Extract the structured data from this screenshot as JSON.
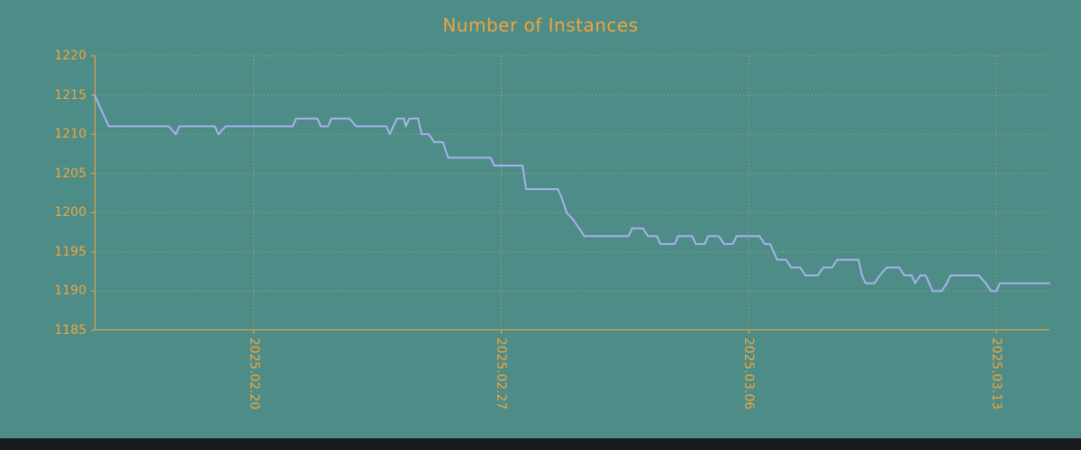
{
  "window": {
    "background": "#4e8d87",
    "bottom_bar_color": "#17191d"
  },
  "chart_data": {
    "type": "line",
    "title": "Number of Instances",
    "accent_color": "#f0a43f",
    "line_color": "#a9b1ee",
    "grid_color": "#e0c37a",
    "xlabel": "",
    "ylabel": "",
    "legend": "none",
    "grid": "dotted",
    "x_axis": {
      "unit": "date",
      "range_days": [
        -4.5,
        22.5
      ],
      "tick_positions_days": [
        0,
        7,
        14,
        21
      ],
      "tick_labels": [
        "2025.02.20",
        "2025.02.27",
        "2025.03.06",
        "2025.03.13"
      ]
    },
    "y_axis": {
      "range": [
        1185,
        1220
      ],
      "ticks": [
        1185,
        1190,
        1195,
        1200,
        1205,
        1210,
        1215,
        1220
      ]
    },
    "series": [
      {
        "name": "instances",
        "points": [
          [
            -4.5,
            1215
          ],
          [
            -4.3,
            1213
          ],
          [
            -4.1,
            1211
          ],
          [
            -2.4,
            1211
          ],
          [
            -2.2,
            1210
          ],
          [
            -2.1,
            1211
          ],
          [
            -1.1,
            1211
          ],
          [
            -1.0,
            1210
          ],
          [
            -0.8,
            1211
          ],
          [
            1.1,
            1211
          ],
          [
            1.2,
            1212
          ],
          [
            1.8,
            1212
          ],
          [
            1.9,
            1211
          ],
          [
            2.1,
            1211
          ],
          [
            2.2,
            1212
          ],
          [
            2.7,
            1212
          ],
          [
            2.9,
            1211
          ],
          [
            3.75,
            1211
          ],
          [
            3.85,
            1210
          ],
          [
            3.95,
            1211
          ],
          [
            4.05,
            1212
          ],
          [
            4.25,
            1212
          ],
          [
            4.3,
            1211
          ],
          [
            4.4,
            1212
          ],
          [
            4.65,
            1212
          ],
          [
            4.75,
            1210
          ],
          [
            4.95,
            1210
          ],
          [
            5.1,
            1209
          ],
          [
            5.35,
            1209
          ],
          [
            5.5,
            1207
          ],
          [
            6.7,
            1207
          ],
          [
            6.8,
            1206
          ],
          [
            7.6,
            1206
          ],
          [
            7.7,
            1203
          ],
          [
            8.6,
            1203
          ],
          [
            8.7,
            1202
          ],
          [
            8.85,
            1200
          ],
          [
            9.05,
            1199
          ],
          [
            9.35,
            1197
          ],
          [
            10.6,
            1197
          ],
          [
            10.7,
            1198
          ],
          [
            11.0,
            1198
          ],
          [
            11.15,
            1197
          ],
          [
            11.4,
            1197
          ],
          [
            11.5,
            1196
          ],
          [
            11.9,
            1196
          ],
          [
            12.0,
            1197
          ],
          [
            12.4,
            1197
          ],
          [
            12.5,
            1196
          ],
          [
            12.75,
            1196
          ],
          [
            12.85,
            1197
          ],
          [
            13.15,
            1197
          ],
          [
            13.3,
            1196
          ],
          [
            13.55,
            1196
          ],
          [
            13.65,
            1197
          ],
          [
            14.3,
            1197
          ],
          [
            14.45,
            1196
          ],
          [
            14.6,
            1196
          ],
          [
            14.7,
            1195
          ],
          [
            14.8,
            1194
          ],
          [
            15.05,
            1194
          ],
          [
            15.2,
            1193
          ],
          [
            15.45,
            1193
          ],
          [
            15.6,
            1192
          ],
          [
            15.95,
            1192
          ],
          [
            16.1,
            1193
          ],
          [
            16.35,
            1193
          ],
          [
            16.5,
            1194
          ],
          [
            17.1,
            1194
          ],
          [
            17.2,
            1192
          ],
          [
            17.3,
            1191
          ],
          [
            17.55,
            1191
          ],
          [
            17.7,
            1192
          ],
          [
            17.9,
            1193
          ],
          [
            18.25,
            1193
          ],
          [
            18.4,
            1192
          ],
          [
            18.6,
            1192
          ],
          [
            18.7,
            1191
          ],
          [
            18.85,
            1192
          ],
          [
            19.0,
            1192
          ],
          [
            19.1,
            1191
          ],
          [
            19.2,
            1190
          ],
          [
            19.45,
            1190
          ],
          [
            19.6,
            1191
          ],
          [
            19.7,
            1192
          ],
          [
            20.5,
            1192
          ],
          [
            20.7,
            1191
          ],
          [
            20.85,
            1190
          ],
          [
            21.0,
            1190
          ],
          [
            21.1,
            1191
          ],
          [
            22.5,
            1191
          ]
        ]
      }
    ]
  }
}
